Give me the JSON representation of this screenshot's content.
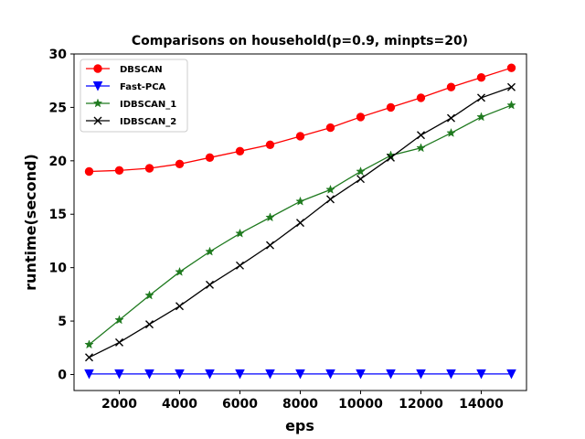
{
  "chart_data": {
    "type": "line",
    "title": "Comparisons on household(p=0.9, minpts=20)",
    "xlabel": "eps",
    "ylabel": "runtime(second)",
    "xlim": [
      500,
      15500
    ],
    "ylim": [
      -1.5,
      30
    ],
    "x_ticks": [
      2000,
      4000,
      6000,
      8000,
      10000,
      12000,
      14000
    ],
    "y_ticks": [
      0,
      5,
      10,
      15,
      20,
      25,
      30
    ],
    "legend_position": "top-left",
    "grid": false,
    "x": [
      1000,
      2000,
      3000,
      4000,
      5000,
      6000,
      7000,
      8000,
      9000,
      10000,
      11000,
      12000,
      13000,
      14000,
      15000
    ],
    "series": [
      {
        "name": "DBSCAN",
        "color": "#ff0000",
        "marker": "circle",
        "values": [
          19.0,
          19.1,
          19.3,
          19.7,
          20.3,
          20.9,
          21.5,
          22.3,
          23.1,
          24.1,
          25.0,
          25.9,
          26.9,
          27.8,
          28.7
        ]
      },
      {
        "name": "Fast-PCA",
        "color": "#0000ff",
        "marker": "triangle-down",
        "values": [
          0.05,
          0.05,
          0.05,
          0.05,
          0.05,
          0.05,
          0.05,
          0.05,
          0.05,
          0.05,
          0.05,
          0.05,
          0.05,
          0.05,
          0.05
        ]
      },
      {
        "name": "IDBSCAN_1",
        "color": "#1f7a1f",
        "marker": "star",
        "values": [
          2.8,
          5.1,
          7.4,
          9.6,
          11.5,
          13.2,
          14.7,
          16.2,
          17.3,
          19.0,
          20.5,
          21.2,
          22.6,
          24.1,
          25.2
        ]
      },
      {
        "name": "IDBSCAN_2",
        "color": "#000000",
        "marker": "x",
        "values": [
          1.6,
          3.0,
          4.7,
          6.4,
          8.4,
          10.2,
          12.1,
          14.2,
          16.4,
          18.3,
          20.3,
          22.4,
          24.0,
          25.9,
          26.9
        ]
      }
    ]
  }
}
